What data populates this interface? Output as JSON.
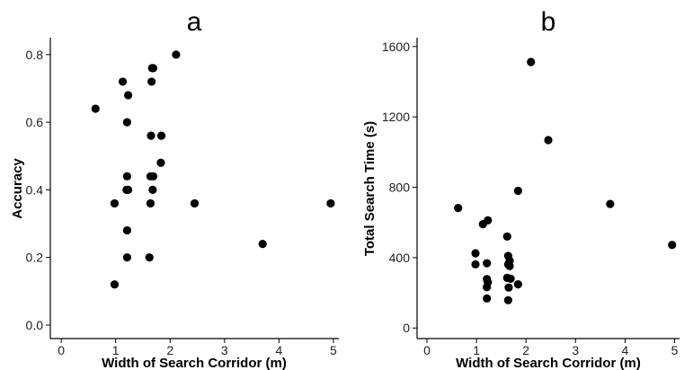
{
  "chart_data": [
    {
      "type": "scatter",
      "title": "a",
      "xlabel": "Width of Search Corridor (m)",
      "ylabel": "Accuracy",
      "xlim": [
        -0.2,
        5.1
      ],
      "ylim": [
        -0.04,
        0.85
      ],
      "xticks": [
        0,
        1,
        2,
        3,
        4,
        5
      ],
      "xtick_labels": [
        "0",
        "1",
        "2",
        "3",
        "4",
        "5"
      ],
      "yticks": [
        0.0,
        0.2,
        0.4,
        0.6,
        0.8
      ],
      "ytick_labels": [
        "0.0",
        "0.2",
        "0.4",
        "0.6",
        "0.8"
      ],
      "grid": false,
      "point_color": "#000000",
      "points": [
        {
          "x": 0.63,
          "y": 0.64
        },
        {
          "x": 0.98,
          "y": 0.12
        },
        {
          "x": 0.98,
          "y": 0.36
        },
        {
          "x": 1.13,
          "y": 0.72
        },
        {
          "x": 1.21,
          "y": 0.6
        },
        {
          "x": 1.23,
          "y": 0.68
        },
        {
          "x": 1.21,
          "y": 0.44
        },
        {
          "x": 1.2,
          "y": 0.4
        },
        {
          "x": 1.23,
          "y": 0.4
        },
        {
          "x": 1.21,
          "y": 0.28
        },
        {
          "x": 1.21,
          "y": 0.2
        },
        {
          "x": 1.62,
          "y": 0.2
        },
        {
          "x": 1.64,
          "y": 0.36
        },
        {
          "x": 1.64,
          "y": 0.44
        },
        {
          "x": 1.69,
          "y": 0.44
        },
        {
          "x": 1.68,
          "y": 0.4
        },
        {
          "x": 1.65,
          "y": 0.56
        },
        {
          "x": 1.66,
          "y": 0.72
        },
        {
          "x": 1.67,
          "y": 0.76
        },
        {
          "x": 1.69,
          "y": 0.76
        },
        {
          "x": 1.84,
          "y": 0.56
        },
        {
          "x": 1.83,
          "y": 0.48
        },
        {
          "x": 2.11,
          "y": 0.8
        },
        {
          "x": 2.45,
          "y": 0.36
        },
        {
          "x": 3.7,
          "y": 0.24
        },
        {
          "x": 4.95,
          "y": 0.36
        }
      ]
    },
    {
      "type": "scatter",
      "title": "b",
      "xlabel": "Width of Search Corridor (m)",
      "ylabel": "Total Search Time (s)",
      "xlim": [
        -0.2,
        5.1
      ],
      "ylim": [
        -60,
        1650
      ],
      "xticks": [
        0,
        1,
        2,
        3,
        4,
        5
      ],
      "xtick_labels": [
        "0",
        "1",
        "2",
        "3",
        "4",
        "5"
      ],
      "yticks": [
        0,
        400,
        800,
        1200,
        1600
      ],
      "ytick_labels": [
        "0",
        "400",
        "800",
        "1200",
        "1600"
      ],
      "grid": false,
      "point_color": "#000000",
      "points": [
        {
          "x": 0.63,
          "y": 682
        },
        {
          "x": 0.98,
          "y": 425
        },
        {
          "x": 0.98,
          "y": 362
        },
        {
          "x": 1.13,
          "y": 590
        },
        {
          "x": 1.23,
          "y": 612
        },
        {
          "x": 1.21,
          "y": 368
        },
        {
          "x": 1.21,
          "y": 278
        },
        {
          "x": 1.23,
          "y": 260
        },
        {
          "x": 1.21,
          "y": 232
        },
        {
          "x": 1.21,
          "y": 168
        },
        {
          "x": 1.62,
          "y": 520
        },
        {
          "x": 1.64,
          "y": 410
        },
        {
          "x": 1.67,
          "y": 383
        },
        {
          "x": 1.64,
          "y": 362
        },
        {
          "x": 1.67,
          "y": 352
        },
        {
          "x": 1.62,
          "y": 285
        },
        {
          "x": 1.69,
          "y": 280
        },
        {
          "x": 1.65,
          "y": 230
        },
        {
          "x": 1.64,
          "y": 158
        },
        {
          "x": 1.84,
          "y": 248
        },
        {
          "x": 1.84,
          "y": 780
        },
        {
          "x": 2.1,
          "y": 1512
        },
        {
          "x": 2.45,
          "y": 1068
        },
        {
          "x": 3.7,
          "y": 705
        },
        {
          "x": 4.95,
          "y": 472
        }
      ]
    }
  ]
}
